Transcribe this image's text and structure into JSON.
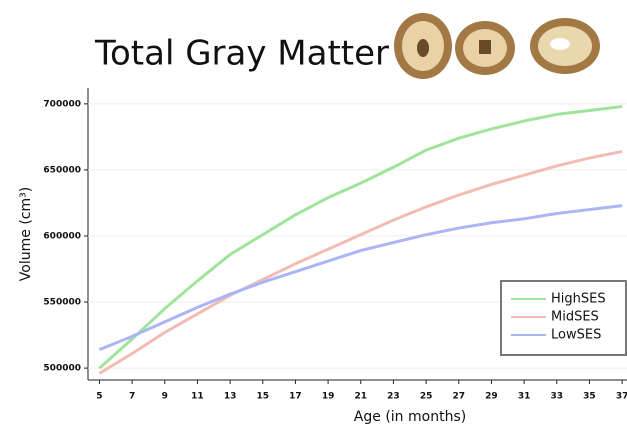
{
  "chart_data": {
    "type": "line",
    "title": "Total Gray Matter",
    "x_label": "Age (in months)",
    "y_label": "Volume (cm³)",
    "x": [
      5,
      7,
      9,
      11,
      13,
      15,
      17,
      19,
      21,
      23,
      25,
      27,
      29,
      31,
      33,
      35,
      37
    ],
    "series": [
      {
        "name": "HighSES",
        "color": "#9fe49a",
        "values": [
          500000,
          522000,
          545000,
          566000,
          586000,
          601000,
          616000,
          629000,
          640000,
          652000,
          665000,
          674000,
          681000,
          687000,
          692000,
          695000,
          698000
        ]
      },
      {
        "name": "MidSES",
        "color": "#f2bcb3",
        "values": [
          496000,
          511000,
          527000,
          541000,
          555000,
          567000,
          579000,
          590000,
          601000,
          612000,
          622000,
          631000,
          639000,
          646000,
          653000,
          659000,
          664000
        ]
      },
      {
        "name": "LowSES",
        "color": "#a9b5f5",
        "values": [
          514000,
          524000,
          535000,
          546000,
          556000,
          565000,
          573000,
          581000,
          589000,
          595000,
          601000,
          606000,
          610000,
          613000,
          617000,
          620000,
          623000
        ]
      }
    ],
    "xlim": [
      4.3,
      37.3
    ],
    "xticks": [
      5,
      7,
      9,
      11,
      13,
      15,
      17,
      19,
      21,
      23,
      25,
      27,
      29,
      31,
      33,
      35,
      37
    ],
    "ylim": [
      491000,
      712000
    ],
    "yticks": [
      500000,
      550000,
      600000,
      650000,
      700000
    ],
    "grid": true,
    "legend": "lower right"
  }
}
